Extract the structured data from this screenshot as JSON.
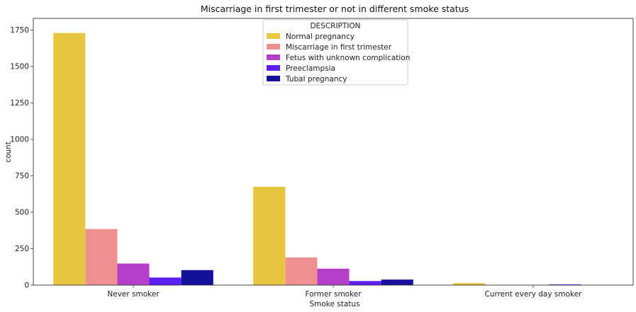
{
  "chart_data": {
    "type": "bar",
    "title": "Miscarriage in first trimester or not in different smoke status",
    "xlabel": "Smoke status",
    "ylabel": "count",
    "ylim": [
      0,
      1830
    ],
    "yticks": [
      0,
      250,
      500,
      750,
      1000,
      1250,
      1500,
      1750
    ],
    "categories": [
      "Never smoker",
      "Former smoker",
      "Current every day smoker"
    ],
    "legend": {
      "title": "DESCRIPTION",
      "position": "top-center"
    },
    "grid": false,
    "series": [
      {
        "name": "Normal pregnancy",
        "color": "#e9c63f",
        "values": [
          1730,
          675,
          14
        ]
      },
      {
        "name": "Miscarriage in first trimester",
        "color": "#ef9090",
        "values": [
          385,
          190,
          0
        ]
      },
      {
        "name": "Fetus with unknown complication",
        "color": "#b43fc9",
        "values": [
          148,
          113,
          0
        ]
      },
      {
        "name": "Preeclampsia",
        "color": "#5b1ff2",
        "values": [
          52,
          28,
          5
        ]
      },
      {
        "name": "Tubal pregnancy",
        "color": "#14109a",
        "values": [
          103,
          38,
          0
        ]
      }
    ]
  }
}
